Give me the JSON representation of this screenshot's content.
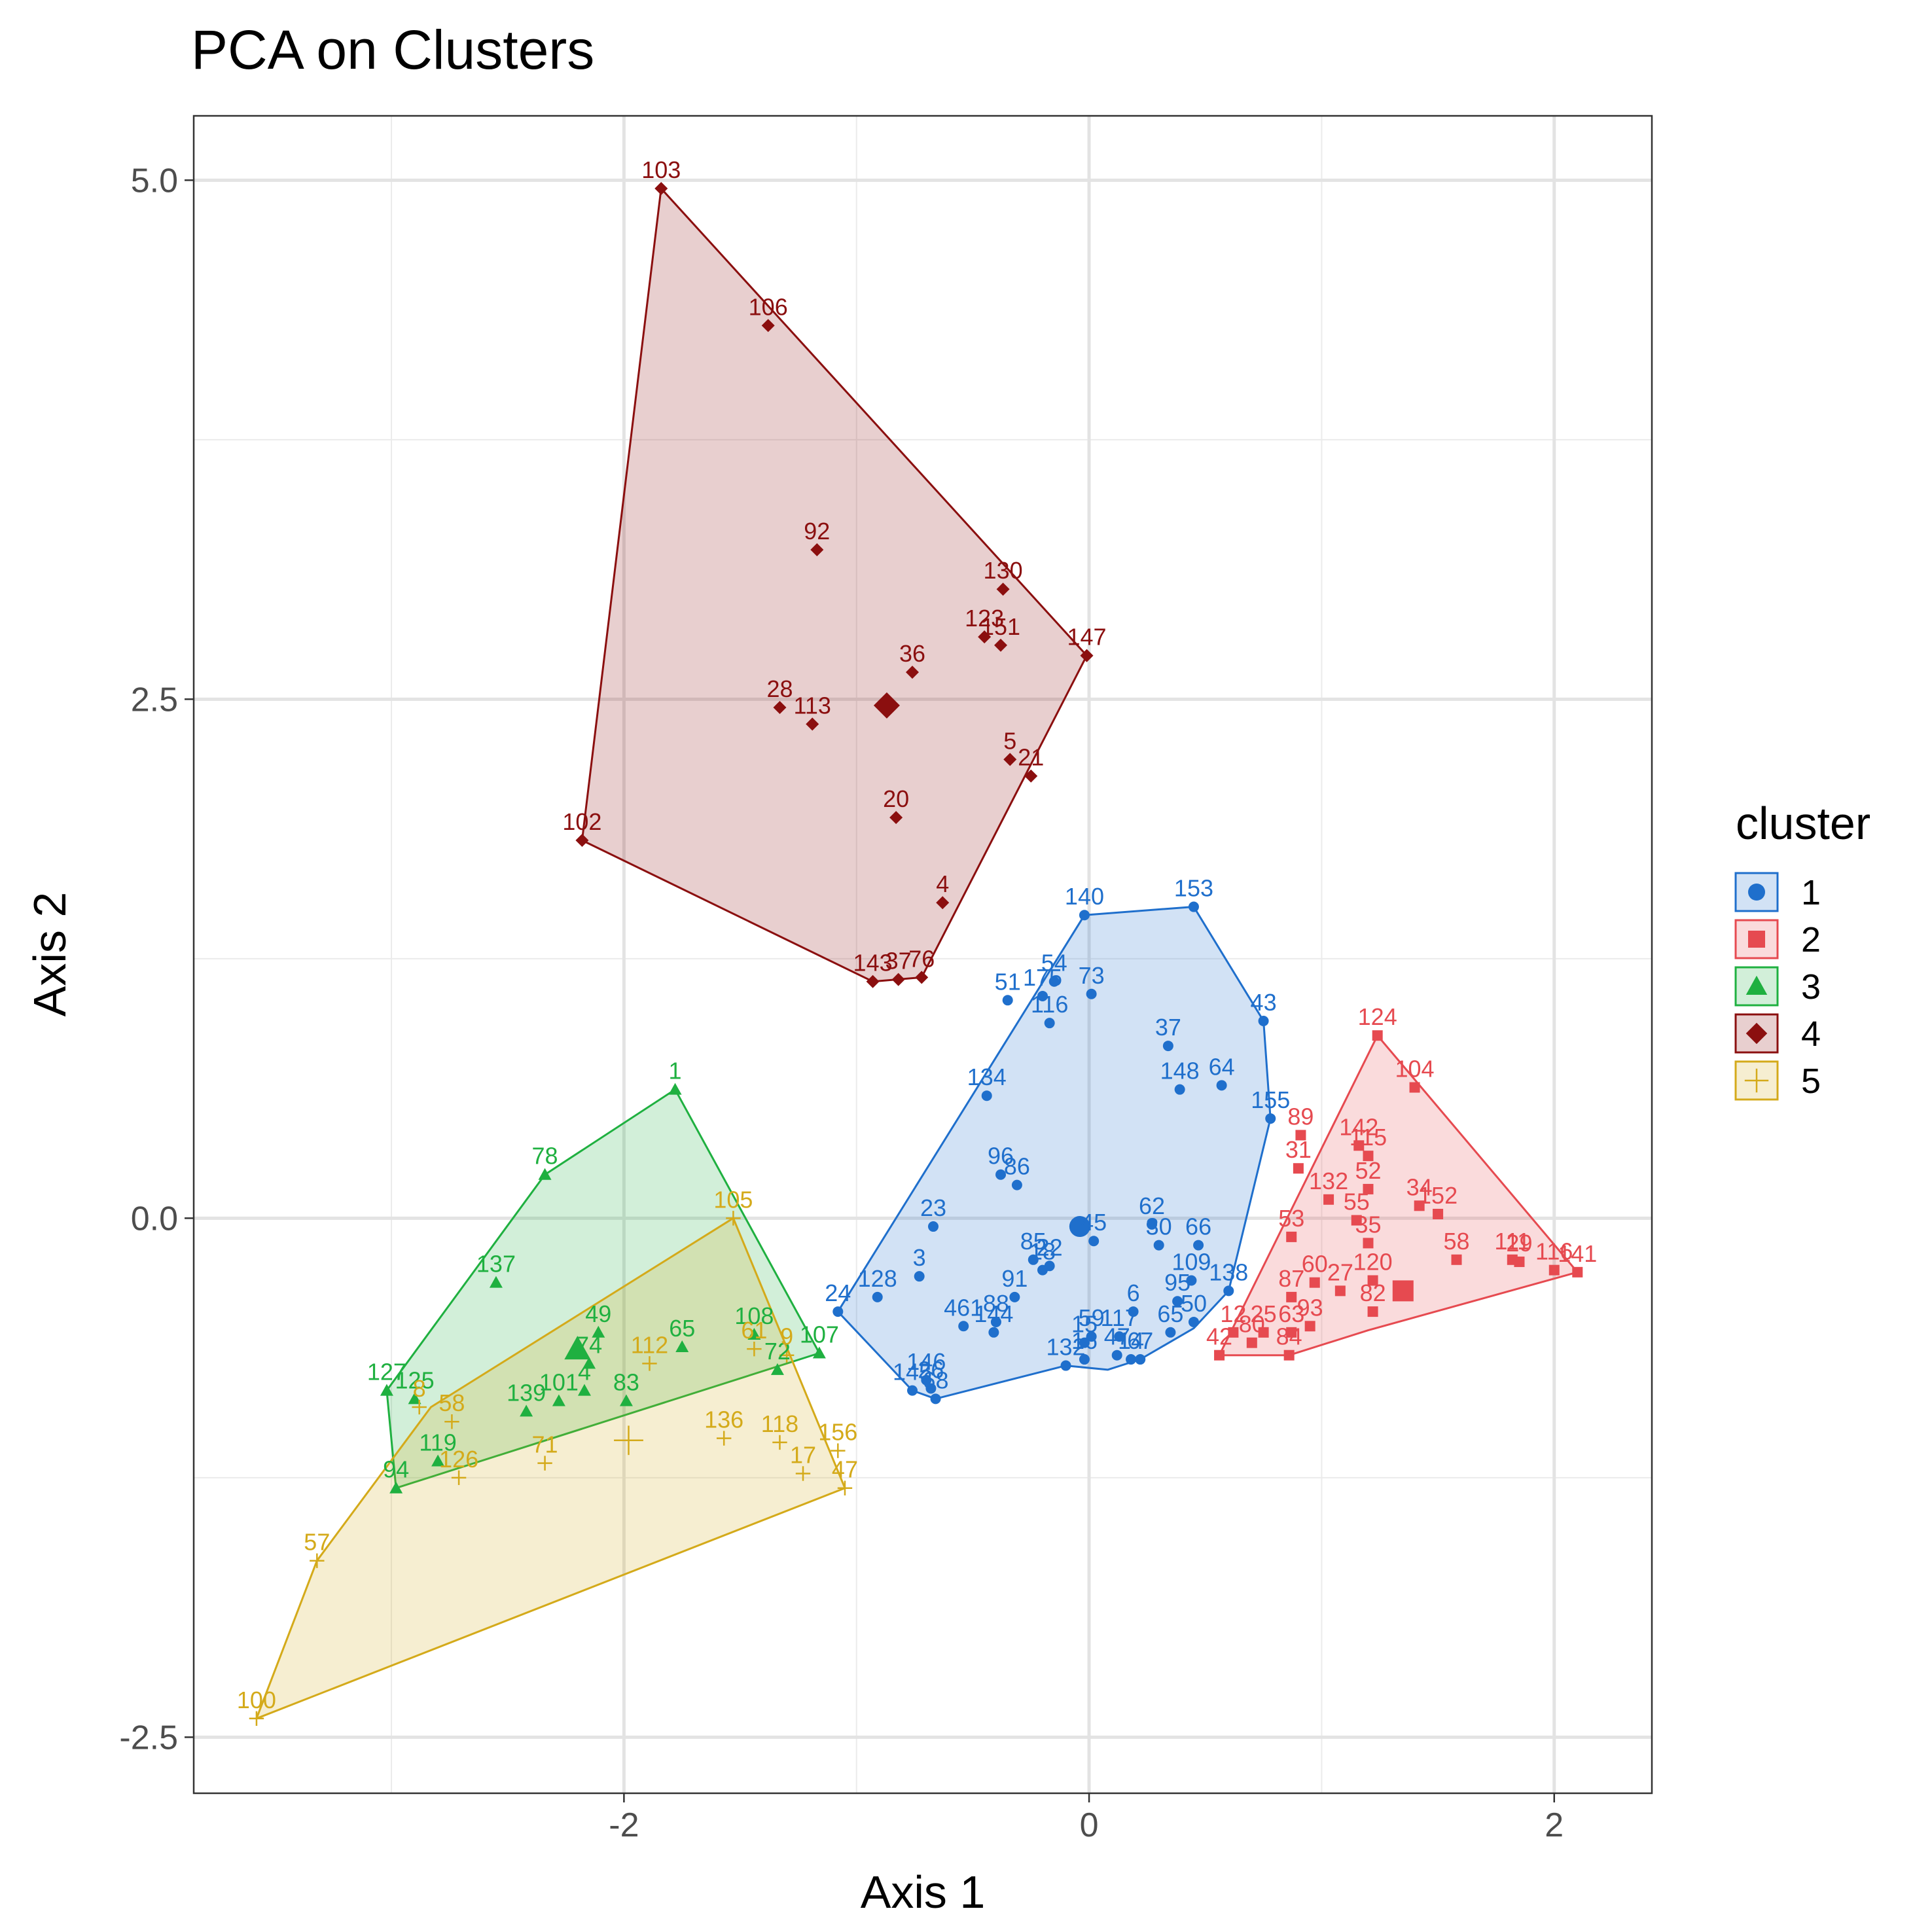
{
  "chart_data": {
    "type": "scatter",
    "title": "PCA on Clusters",
    "xlabel": "Axis 1",
    "ylabel": "Axis 2",
    "xlim": [
      -3.85,
      2.42
    ],
    "ylim": [
      -2.77,
      5.31
    ],
    "x_ticks": [
      -2,
      0,
      2
    ],
    "x_tick_labels": [
      "-2",
      "0",
      "2"
    ],
    "y_ticks": [
      -2.5,
      0,
      2.5,
      5
    ],
    "y_tick_labels": [
      "-2.5",
      "0.0",
      "2.5",
      "5.0"
    ],
    "grid": true,
    "legend": {
      "title": "cluster",
      "position": "right",
      "entries": [
        "1",
        "2",
        "3",
        "4",
        "5"
      ]
    },
    "series": [
      {
        "name": "1",
        "color": "#1f6fcc",
        "shape": "circle",
        "centroid": [
          -0.04,
          -0.04
        ],
        "hull": [
          [
            -0.02,
            1.46
          ],
          [
            0.45,
            1.5
          ],
          [
            0.75,
            0.95
          ],
          [
            0.78,
            0.48
          ],
          [
            0.6,
            -0.35
          ],
          [
            0.45,
            -0.53
          ],
          [
            0.22,
            -0.68
          ],
          [
            0.08,
            -0.73
          ],
          [
            -0.1,
            -0.71
          ],
          [
            -0.66,
            -0.87
          ],
          [
            -0.76,
            -0.83
          ],
          [
            -1.08,
            -0.45
          ]
        ],
        "points": [
          {
            "id": "140",
            "x": -0.02,
            "y": 1.46
          },
          {
            "id": "153",
            "x": 0.45,
            "y": 1.5
          },
          {
            "id": "43",
            "x": 0.75,
            "y": 0.95
          },
          {
            "id": "155",
            "x": 0.78,
            "y": 0.48
          },
          {
            "id": "138",
            "x": 0.6,
            "y": -0.35
          },
          {
            "id": "54",
            "x": -0.15,
            "y": 1.14
          },
          {
            "id": "51",
            "x": -0.35,
            "y": 1.05
          },
          {
            "id": "175",
            "x": -0.2,
            "y": 1.07
          },
          {
            "id": "73",
            "x": 0.01,
            "y": 1.08
          },
          {
            "id": "116",
            "x": -0.17,
            "y": 0.94
          },
          {
            "id": "37",
            "x": 0.34,
            "y": 0.83
          },
          {
            "id": "148",
            "x": 0.39,
            "y": 0.62
          },
          {
            "id": "64",
            "x": 0.57,
            "y": 0.64
          },
          {
            "id": "134",
            "x": -0.44,
            "y": 0.59
          },
          {
            "id": "96",
            "x": -0.38,
            "y": 0.21
          },
          {
            "id": "86",
            "x": -0.31,
            "y": 0.16
          },
          {
            "id": "23",
            "x": -0.67,
            "y": -0.04
          },
          {
            "id": "45",
            "x": 0.02,
            "y": -0.11
          },
          {
            "id": "62",
            "x": 0.27,
            "y": -0.03
          },
          {
            "id": "30",
            "x": 0.3,
            "y": -0.13
          },
          {
            "id": "66",
            "x": 0.47,
            "y": -0.13
          },
          {
            "id": "85",
            "x": -0.24,
            "y": -0.2
          },
          {
            "id": "22",
            "x": -0.17,
            "y": -0.23
          },
          {
            "id": "109",
            "x": 0.44,
            "y": -0.3
          },
          {
            "id": "18",
            "x": -0.2,
            "y": -0.25
          },
          {
            "id": "3",
            "x": -0.73,
            "y": -0.28
          },
          {
            "id": "128",
            "x": -0.91,
            "y": -0.38
          },
          {
            "id": "24",
            "x": -1.08,
            "y": -0.45
          },
          {
            "id": "95",
            "x": 0.38,
            "y": -0.4
          },
          {
            "id": "91",
            "x": -0.32,
            "y": -0.38
          },
          {
            "id": "6",
            "x": 0.19,
            "y": -0.45
          },
          {
            "id": "461",
            "x": -0.54,
            "y": -0.52
          },
          {
            "id": "144",
            "x": -0.41,
            "y": -0.55
          },
          {
            "id": "88",
            "x": -0.4,
            "y": -0.5
          },
          {
            "id": "50",
            "x": 0.45,
            "y": -0.5
          },
          {
            "id": "65",
            "x": 0.35,
            "y": -0.55
          },
          {
            "id": "117",
            "x": 0.13,
            "y": -0.57
          },
          {
            "id": "15",
            "x": -0.02,
            "y": -0.6
          },
          {
            "id": "59",
            "x": 0.01,
            "y": -0.57
          },
          {
            "id": "47",
            "x": 0.12,
            "y": -0.66
          },
          {
            "id": "14",
            "x": 0.18,
            "y": -0.68
          },
          {
            "id": "67",
            "x": 0.22,
            "y": -0.68
          },
          {
            "id": "132",
            "x": -0.1,
            "y": -0.71
          },
          {
            "id": "16",
            "x": -0.02,
            "y": -0.68
          },
          {
            "id": "145",
            "x": -0.76,
            "y": -0.83
          },
          {
            "id": "146",
            "x": -0.7,
            "y": -0.78
          },
          {
            "id": "26",
            "x": -0.68,
            "y": -0.82
          },
          {
            "id": "68",
            "x": -0.66,
            "y": -0.87
          }
        ]
      },
      {
        "name": "2",
        "color": "#e64a50",
        "shape": "square",
        "centroid": [
          1.35,
          -0.35
        ],
        "hull": [
          [
            1.24,
            0.88
          ],
          [
            2.1,
            -0.26
          ],
          [
            1.2,
            -0.54
          ],
          [
            0.86,
            -0.66
          ],
          [
            0.56,
            -0.66
          ]
        ],
        "points": [
          {
            "id": "124",
            "x": 1.24,
            "y": 0.88
          },
          {
            "id": "104",
            "x": 1.4,
            "y": 0.63
          },
          {
            "id": "89",
            "x": 0.91,
            "y": 0.4
          },
          {
            "id": "142",
            "x": 1.16,
            "y": 0.35
          },
          {
            "id": "115",
            "x": 1.2,
            "y": 0.3
          },
          {
            "id": "31",
            "x": 0.9,
            "y": 0.24
          },
          {
            "id": "132",
            "x": 1.03,
            "y": 0.09
          },
          {
            "id": "52",
            "x": 1.2,
            "y": 0.14
          },
          {
            "id": "34",
            "x": 1.42,
            "y": 0.06
          },
          {
            "id": "152",
            "x": 1.5,
            "y": 0.02
          },
          {
            "id": "53",
            "x": 0.87,
            "y": -0.09
          },
          {
            "id": "55",
            "x": 1.15,
            "y": -0.01
          },
          {
            "id": "35",
            "x": 1.2,
            "y": -0.12
          },
          {
            "id": "60",
            "x": 0.97,
            "y": -0.31
          },
          {
            "id": "87",
            "x": 0.87,
            "y": -0.38
          },
          {
            "id": "27",
            "x": 1.08,
            "y": -0.35
          },
          {
            "id": "82",
            "x": 1.22,
            "y": -0.45
          },
          {
            "id": "120",
            "x": 1.22,
            "y": -0.3
          },
          {
            "id": "58",
            "x": 1.58,
            "y": -0.2
          },
          {
            "id": "111",
            "x": 1.82,
            "y": -0.2
          },
          {
            "id": "29",
            "x": 1.85,
            "y": -0.21
          },
          {
            "id": "116",
            "x": 2.0,
            "y": -0.25
          },
          {
            "id": "141",
            "x": 2.1,
            "y": -0.26
          },
          {
            "id": "63",
            "x": 0.87,
            "y": -0.55
          },
          {
            "id": "93",
            "x": 0.95,
            "y": -0.52
          },
          {
            "id": "84",
            "x": 0.86,
            "y": -0.66
          },
          {
            "id": "80",
            "x": 0.7,
            "y": -0.6
          },
          {
            "id": "42",
            "x": 0.56,
            "y": -0.66
          },
          {
            "id": "12",
            "x": 0.62,
            "y": -0.55
          },
          {
            "id": "25",
            "x": 0.75,
            "y": -0.55
          }
        ]
      },
      {
        "name": "3",
        "color": "#1fb040",
        "shape": "triangle",
        "centroid": [
          -2.2,
          -0.63
        ],
        "hull": [
          [
            -1.78,
            0.62
          ],
          [
            -1.16,
            -0.65
          ],
          [
            -2.98,
            -1.3
          ],
          [
            -3.02,
            -0.83
          ],
          [
            -2.34,
            0.21
          ]
        ],
        "points": [
          {
            "id": "1",
            "x": -1.78,
            "y": 0.62
          },
          {
            "id": "78",
            "x": -2.34,
            "y": 0.21
          },
          {
            "id": "137",
            "x": -2.55,
            "y": -0.31
          },
          {
            "id": "49",
            "x": -2.11,
            "y": -0.55
          },
          {
            "id": "65",
            "x": -1.75,
            "y": -0.62
          },
          {
            "id": "108",
            "x": -1.44,
            "y": -0.56
          },
          {
            "id": "107",
            "x": -1.16,
            "y": -0.65
          },
          {
            "id": "72",
            "x": -1.34,
            "y": -0.73
          },
          {
            "id": "127",
            "x": -3.02,
            "y": -0.83
          },
          {
            "id": "125",
            "x": -2.9,
            "y": -0.87
          },
          {
            "id": "74",
            "x": -2.15,
            "y": -0.7
          },
          {
            "id": "101",
            "x": -2.28,
            "y": -0.88
          },
          {
            "id": "4",
            "x": -2.17,
            "y": -0.83
          },
          {
            "id": "139",
            "x": -2.42,
            "y": -0.93
          },
          {
            "id": "83",
            "x": -1.99,
            "y": -0.88
          },
          {
            "id": "119",
            "x": -2.8,
            "y": -1.17
          },
          {
            "id": "94",
            "x": -2.98,
            "y": -1.3
          }
        ]
      },
      {
        "name": "4",
        "color": "#8b0f0f",
        "shape": "diamond",
        "centroid": [
          -0.87,
          2.47
        ],
        "hull": [
          [
            -1.84,
            4.96
          ],
          [
            -0.01,
            2.71
          ],
          [
            -0.72,
            1.16
          ],
          [
            -0.93,
            1.14
          ],
          [
            -2.18,
            1.82
          ]
        ],
        "points": [
          {
            "id": "103",
            "x": -1.84,
            "y": 4.96
          },
          {
            "id": "106",
            "x": -1.38,
            "y": 4.3
          },
          {
            "id": "92",
            "x": -1.17,
            "y": 3.22
          },
          {
            "id": "130",
            "x": -0.37,
            "y": 3.03
          },
          {
            "id": "123",
            "x": -0.45,
            "y": 2.8
          },
          {
            "id": "151",
            "x": -0.38,
            "y": 2.76
          },
          {
            "id": "147",
            "x": -0.01,
            "y": 2.71
          },
          {
            "id": "36",
            "x": -0.76,
            "y": 2.63
          },
          {
            "id": "28",
            "x": -1.33,
            "y": 2.46
          },
          {
            "id": "113",
            "x": -1.19,
            "y": 2.38
          },
          {
            "id": "5",
            "x": -0.34,
            "y": 2.21
          },
          {
            "id": "21",
            "x": -0.25,
            "y": 2.13
          },
          {
            "id": "20",
            "x": -0.83,
            "y": 1.93
          },
          {
            "id": "102",
            "x": -2.18,
            "y": 1.82
          },
          {
            "id": "4",
            "x": -0.63,
            "y": 1.52
          },
          {
            "id": "143",
            "x": -0.93,
            "y": 1.14
          },
          {
            "id": "37",
            "x": -0.82,
            "y": 1.15
          },
          {
            "id": "76",
            "x": -0.72,
            "y": 1.16
          }
        ]
      },
      {
        "name": "5",
        "color": "#d4aa1a",
        "shape": "plus",
        "centroid": [
          -1.98,
          -1.07
        ],
        "hull": [
          [
            -1.53,
            0.0
          ],
          [
            -1.05,
            -1.3
          ],
          [
            -3.58,
            -2.41
          ],
          [
            -3.32,
            -1.65
          ],
          [
            -2.83,
            -0.91
          ]
        ],
        "points": [
          {
            "id": "105",
            "x": -1.53,
            "y": 0.0
          },
          {
            "id": "112",
            "x": -1.89,
            "y": -0.7
          },
          {
            "id": "61",
            "x": -1.44,
            "y": -0.63
          },
          {
            "id": "9",
            "x": -1.3,
            "y": -0.66
          },
          {
            "id": "8",
            "x": -2.88,
            "y": -0.91
          },
          {
            "id": "58",
            "x": -2.74,
            "y": -0.98
          },
          {
            "id": "136",
            "x": -1.57,
            "y": -1.06
          },
          {
            "id": "118",
            "x": -1.33,
            "y": -1.08
          },
          {
            "id": "156",
            "x": -1.08,
            "y": -1.12
          },
          {
            "id": "71",
            "x": -2.34,
            "y": -1.18
          },
          {
            "id": "126",
            "x": -2.71,
            "y": -1.25
          },
          {
            "id": "17",
            "x": -1.23,
            "y": -1.23
          },
          {
            "id": "47",
            "x": -1.05,
            "y": -1.3
          },
          {
            "id": "57",
            "x": -3.32,
            "y": -1.65
          },
          {
            "id": "100",
            "x": -3.58,
            "y": -2.41
          }
        ]
      }
    ]
  }
}
